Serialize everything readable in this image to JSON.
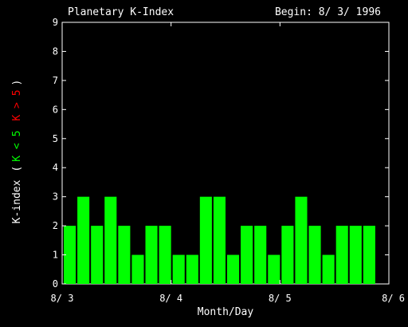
{
  "chart_data": {
    "type": "bar",
    "title": "Planetary K-Index",
    "subtitle": "Begin: 8/ 3/ 1996",
    "xlabel": "Month/Day",
    "ylabel_parts": {
      "main": "K-index",
      "open": "(",
      "low": "K < 5",
      "high": "K > 5",
      "close": ")"
    },
    "colors": {
      "background": "#000000",
      "axis": "#ffffff",
      "bar": "#00ff00",
      "low": "#00ff00",
      "high": "#ff0000"
    },
    "ylim": [
      0,
      9
    ],
    "yticks": [
      "0",
      "1",
      "2",
      "3",
      "4",
      "5",
      "6",
      "7",
      "8",
      "9"
    ],
    "xticks": [
      "8/ 3",
      "8/ 4",
      "8/ 5",
      "8/ 6"
    ],
    "xlim_days": [
      0,
      3
    ],
    "bars_per_day": 8,
    "values": [
      2,
      3,
      2,
      3,
      2,
      1,
      2,
      2,
      1,
      1,
      3,
      3,
      1,
      2,
      2,
      1,
      2,
      3,
      2,
      1,
      2,
      2,
      2,
      0
    ]
  }
}
